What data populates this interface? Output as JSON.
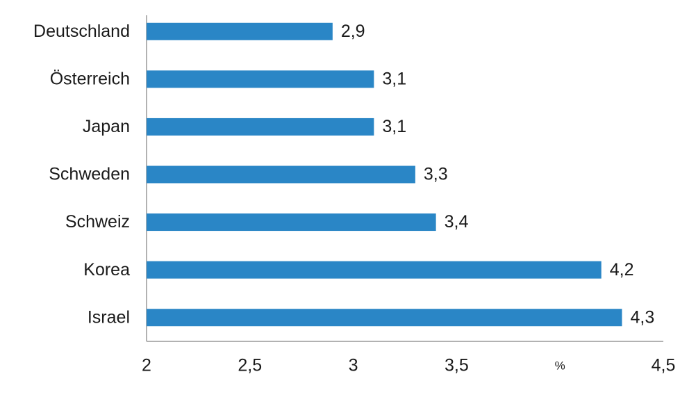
{
  "chart_data": {
    "type": "hbar",
    "categories": [
      "Deutschland",
      "Österreich",
      "Japan",
      "Schweden",
      "Schweiz",
      "Korea",
      "Israel"
    ],
    "values": [
      2.9,
      3.1,
      3.1,
      3.3,
      3.4,
      4.2,
      4.3
    ],
    "value_labels": [
      "2,9",
      "3,1",
      "3,1",
      "3,3",
      "3,4",
      "4,2",
      "4,3"
    ],
    "color": "#2a86c6",
    "xlim": [
      2,
      4.5
    ],
    "xticks": [
      2,
      {
        "value": 2.5,
        "label": "2,5"
      },
      3,
      {
        "value": 3.5,
        "label": "3,5"
      },
      {
        "value": 4,
        "label": "%"
      },
      {
        "value": 4.5,
        "label": "4,5"
      }
    ],
    "grid": false
  }
}
